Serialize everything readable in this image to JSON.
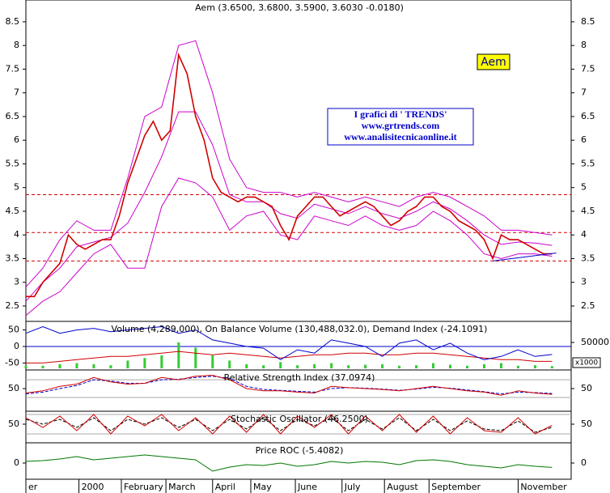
{
  "chart_data": [
    {
      "type": "line",
      "title": "Aem (3.6500, 3.6800, 3.5900, 3.6030 -0.0180)",
      "xlim": [
        0,
        257
      ],
      "ylim": [
        2.175,
        8.96
      ],
      "yticks": [
        2.5,
        3.0,
        3.5,
        4.0,
        4.5,
        5.0,
        5.5,
        6.0,
        6.5,
        7.0,
        7.5,
        8.0,
        8.5
      ],
      "xticks": [
        {
          "value": 0,
          "label": "er"
        },
        {
          "value": 25,
          "label": "2000"
        },
        {
          "value": 45,
          "label": "February"
        },
        {
          "value": 66,
          "label": "March"
        },
        {
          "value": 88,
          "label": "April"
        },
        {
          "value": 106,
          "label": "May"
        },
        {
          "value": 127,
          "label": "June"
        },
        {
          "value": 149,
          "label": "July"
        },
        {
          "value": 169,
          "label": "August"
        },
        {
          "value": 190,
          "label": "September"
        },
        {
          "value": 232,
          "label": "November"
        }
      ],
      "hlines": [
        4.85,
        4.05,
        3.45
      ],
      "hline_color": "#d00000",
      "symbol_label": "Aem",
      "annotations": [
        "I grafici di ' TRENDS'",
        "www.grtrends.com",
        "www.analisitecnicaonline.it"
      ],
      "trendline": {
        "x": [
          220,
          250
        ],
        "y": [
          3.45,
          3.62
        ],
        "color": "#0000cc"
      },
      "series": [
        {
          "color": "#cc00cc",
          "x": [
            0,
            8,
            16,
            24,
            32,
            40,
            48,
            56,
            64,
            72,
            80,
            88,
            96,
            104,
            112,
            120,
            128,
            136,
            144,
            152,
            160,
            168,
            176,
            184,
            192,
            200,
            208,
            216,
            224,
            232,
            240,
            248
          ],
          "values": [
            2.9,
            3.3,
            3.9,
            4.3,
            4.1,
            4.1,
            5.2,
            6.5,
            6.7,
            8.0,
            8.1,
            7.0,
            5.6,
            5.0,
            4.9,
            4.9,
            4.8,
            4.9,
            4.8,
            4.7,
            4.8,
            4.7,
            4.6,
            4.8,
            4.9,
            4.8,
            4.6,
            4.4,
            4.1,
            4.1,
            4.05,
            4.0
          ]
        },
        {
          "color": "#cc00cc",
          "x": [
            0,
            8,
            16,
            24,
            32,
            40,
            48,
            56,
            64,
            72,
            80,
            88,
            96,
            104,
            112,
            120,
            128,
            136,
            144,
            152,
            160,
            168,
            176,
            184,
            192,
            200,
            208,
            216,
            224,
            232,
            240,
            248
          ],
          "values": [
            2.6,
            3.0,
            3.3,
            3.75,
            3.85,
            3.95,
            4.25,
            4.9,
            5.65,
            6.6,
            6.6,
            5.9,
            4.85,
            4.7,
            4.7,
            4.45,
            4.35,
            4.65,
            4.55,
            4.45,
            4.6,
            4.45,
            4.35,
            4.5,
            4.7,
            4.55,
            4.3,
            4.0,
            3.8,
            3.85,
            3.83,
            3.78
          ]
        },
        {
          "color": "#cc00cc",
          "x": [
            0,
            8,
            16,
            24,
            32,
            40,
            48,
            56,
            64,
            72,
            80,
            88,
            96,
            104,
            112,
            120,
            128,
            136,
            144,
            152,
            160,
            168,
            176,
            184,
            192,
            200,
            208,
            216,
            224,
            232,
            240,
            248
          ],
          "values": [
            2.3,
            2.6,
            2.8,
            3.2,
            3.6,
            3.8,
            3.3,
            3.3,
            4.6,
            5.2,
            5.1,
            4.8,
            4.1,
            4.4,
            4.5,
            4.0,
            3.9,
            4.4,
            4.3,
            4.2,
            4.4,
            4.2,
            4.1,
            4.2,
            4.5,
            4.3,
            4.0,
            3.6,
            3.5,
            3.6,
            3.6,
            3.55
          ]
        },
        {
          "color": "#d00000",
          "x": [
            0,
            4,
            8,
            12,
            16,
            20,
            24,
            28,
            32,
            36,
            40,
            44,
            48,
            52,
            56,
            60,
            64,
            68,
            72,
            76,
            80,
            84,
            88,
            92,
            96,
            100,
            104,
            108,
            112,
            116,
            120,
            124,
            128,
            132,
            136,
            140,
            144,
            148,
            152,
            156,
            160,
            164,
            168,
            172,
            176,
            180,
            184,
            188,
            192,
            196,
            200,
            204,
            208,
            212,
            216,
            220,
            224,
            228,
            232,
            236,
            240,
            244,
            248
          ],
          "values": [
            2.7,
            2.7,
            3.0,
            3.2,
            3.4,
            4.0,
            3.8,
            3.7,
            3.8,
            3.9,
            3.9,
            4.4,
            5.1,
            5.6,
            6.1,
            6.4,
            6.0,
            6.2,
            7.8,
            7.4,
            6.5,
            6.0,
            5.2,
            4.9,
            4.8,
            4.7,
            4.8,
            4.8,
            4.7,
            4.6,
            4.2,
            3.9,
            4.4,
            4.6,
            4.8,
            4.8,
            4.6,
            4.4,
            4.5,
            4.6,
            4.7,
            4.6,
            4.4,
            4.2,
            4.3,
            4.5,
            4.6,
            4.8,
            4.8,
            4.6,
            4.5,
            4.3,
            4.2,
            4.1,
            3.9,
            3.5,
            4.0,
            3.9,
            3.9,
            3.8,
            3.7,
            3.6,
            3.6
          ]
        }
      ]
    },
    {
      "type": "line",
      "title": "Volume (4,289,000), On Balance Volume (130,488,032.0), Demand Index (-24.1091)",
      "xlim": [
        0,
        257
      ],
      "ylim": [
        -71,
        76
      ],
      "yticks": [
        50,
        0,
        -50
      ],
      "y2lim": [
        -3125,
        90625
      ],
      "y2ticks": [
        50000
      ],
      "unit_label": "x1000",
      "hlines": [
        0
      ],
      "hline_color": "#0000cc",
      "x": [
        0,
        8,
        16,
        24,
        32,
        40,
        48,
        56,
        64,
        72,
        80,
        88,
        96,
        104,
        112,
        120,
        128,
        136,
        144,
        152,
        160,
        168,
        176,
        184,
        192,
        200,
        208,
        216,
        224,
        232,
        240,
        248
      ],
      "series": [
        {
          "color": "#33cc33",
          "style": "bar",
          "axis": "y2",
          "values": [
            5000,
            5000,
            8000,
            10000,
            8000,
            6000,
            15000,
            20000,
            25000,
            50000,
            40000,
            25000,
            15000,
            8000,
            6000,
            12000,
            6000,
            8000,
            10000,
            6000,
            7000,
            8000,
            5000,
            6000,
            10000,
            7000,
            5000,
            8000,
            10000,
            5000,
            6000,
            4289
          ]
        },
        {
          "color": "#d00000",
          "values": [
            -50,
            -50,
            -45,
            -40,
            -35,
            -30,
            -30,
            -25,
            -20,
            -15,
            -20,
            -25,
            -20,
            -25,
            -30,
            -35,
            -30,
            -25,
            -25,
            -20,
            -20,
            -25,
            -25,
            -20,
            -20,
            -25,
            -30,
            -35,
            -40,
            -40,
            -45,
            -45
          ]
        },
        {
          "color": "#0000cc",
          "values": [
            40,
            60,
            40,
            50,
            55,
            45,
            50,
            55,
            60,
            40,
            50,
            20,
            10,
            0,
            -5,
            -40,
            -10,
            -20,
            20,
            10,
            0,
            -30,
            10,
            20,
            -10,
            10,
            -20,
            -40,
            -30,
            -10,
            -30,
            -24.1091
          ]
        }
      ]
    },
    {
      "type": "line",
      "title": "Relative Strength Index (37.0974)",
      "xlim": [
        0,
        257
      ],
      "ylim": [
        -1,
        92
      ],
      "yticks": [
        50
      ],
      "hlines": [
        70,
        30
      ],
      "hline_color": "#aaaaaa",
      "x": [
        0,
        8,
        16,
        24,
        32,
        40,
        48,
        56,
        64,
        72,
        80,
        88,
        96,
        104,
        112,
        120,
        128,
        136,
        144,
        152,
        160,
        168,
        176,
        184,
        192,
        200,
        208,
        216,
        224,
        232,
        240,
        248
      ],
      "series": [
        {
          "color": "#0000cc",
          "dash": true,
          "values": [
            38,
            42,
            50,
            57,
            70,
            67,
            62,
            62,
            70,
            71,
            75,
            78,
            73,
            55,
            48,
            46,
            44,
            42,
            50,
            52,
            51,
            49,
            46,
            49,
            53,
            51,
            47,
            43,
            38,
            42,
            41,
            39
          ]
        },
        {
          "color": "#d00000",
          "values": [
            40,
            45,
            55,
            60,
            75,
            65,
            60,
            62,
            75,
            70,
            78,
            80,
            70,
            50,
            45,
            45,
            42,
            40,
            55,
            52,
            50,
            48,
            45,
            50,
            55,
            50,
            45,
            42,
            35,
            45,
            40,
            37.0974
          ]
        }
      ]
    },
    {
      "type": "line",
      "title": "Stochastic Oscillator (46.2500)",
      "xlim": [
        0,
        257
      ],
      "ylim": [
        -7.5,
        90
      ],
      "yticks": [
        50
      ],
      "hlines": [
        80,
        20
      ],
      "hline_color": "#aaaaaa",
      "x": [
        0,
        8,
        16,
        24,
        32,
        40,
        48,
        56,
        64,
        72,
        80,
        88,
        96,
        104,
        112,
        120,
        128,
        136,
        144,
        152,
        160,
        168,
        176,
        184,
        192,
        200,
        208,
        216,
        224,
        232,
        240,
        248
      ],
      "series": [
        {
          "color": "#000000",
          "dash": true,
          "values": [
            65,
            50,
            65,
            40,
            70,
            30,
            65,
            50,
            70,
            40,
            65,
            30,
            65,
            35,
            70,
            30,
            65,
            45,
            70,
            30,
            65,
            35,
            70,
            30,
            65,
            30,
            60,
            35,
            30,
            60,
            25,
            40
          ]
        },
        {
          "color": "#d00000",
          "values": [
            70,
            40,
            75,
            30,
            80,
            20,
            75,
            45,
            80,
            30,
            70,
            20,
            75,
            25,
            80,
            20,
            75,
            40,
            80,
            20,
            75,
            30,
            80,
            25,
            75,
            20,
            70,
            30,
            25,
            70,
            20,
            46.25
          ]
        }
      ]
    },
    {
      "type": "line",
      "title": "Price ROC (-5.4082)",
      "xlim": [
        0,
        257
      ],
      "ylim": [
        -20,
        25
      ],
      "yticks": [
        0
      ],
      "x": [
        0,
        8,
        16,
        24,
        32,
        40,
        48,
        56,
        64,
        72,
        80,
        88,
        96,
        104,
        112,
        120,
        128,
        136,
        144,
        152,
        160,
        168,
        176,
        184,
        192,
        200,
        208,
        216,
        224,
        232,
        240,
        248
      ],
      "series": [
        {
          "color": "#007700",
          "values": [
            2,
            3,
            5,
            8,
            4,
            6,
            8,
            10,
            8,
            6,
            4,
            -10,
            -5,
            -2,
            -3,
            0,
            -4,
            -2,
            2,
            0,
            2,
            1,
            -2,
            3,
            4,
            2,
            -2,
            -4,
            -6,
            -2,
            -4,
            -5.4082
          ]
        }
      ]
    }
  ]
}
